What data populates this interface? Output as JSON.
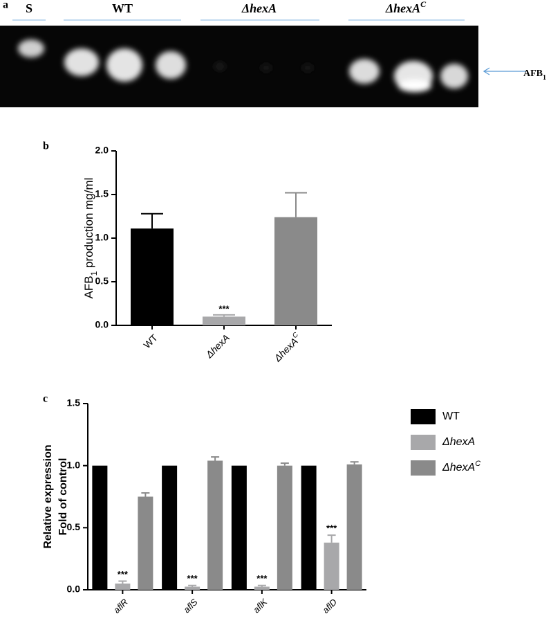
{
  "panel_a": {
    "label": "a",
    "lanes": [
      {
        "text": "S"
      },
      {
        "text": "WT"
      },
      {
        "text": "ΔhexA"
      },
      {
        "text": "ΔhexA",
        "sup": "C"
      }
    ],
    "marker": {
      "text": "AFB",
      "sub": "1"
    }
  },
  "chart_data": [
    {
      "type": "bar",
      "panel": "b",
      "ylabel": {
        "text": "AFB",
        "sub": "1",
        "rest": " production mg/ml"
      },
      "categories": [
        "WT",
        "ΔhexA",
        "ΔhexA"
      ],
      "category_sups": [
        null,
        null,
        "C"
      ],
      "values": [
        1.11,
        0.1,
        1.24
      ],
      "errors": [
        0.17,
        0.02,
        0.28
      ],
      "colors": [
        "#000000",
        "#a8a8aa",
        "#8a8a8a"
      ],
      "annotations": [
        null,
        "***",
        null
      ],
      "ylim": [
        0,
        2
      ],
      "yticks": [
        {
          "value": 0,
          "label": "0.0"
        },
        {
          "value": 0.5,
          "label": "0.5"
        },
        {
          "value": 1,
          "label": "1.0"
        },
        {
          "value": 1.5,
          "label": "1.5"
        },
        {
          "value": 2,
          "label": "2.0"
        }
      ]
    },
    {
      "type": "grouped_bar",
      "panel": "c",
      "ylabel": [
        "Relative expression",
        "Fold of control"
      ],
      "categories": [
        "aflR",
        "aflS",
        "aflK",
        "aflD"
      ],
      "series": [
        {
          "name": "WT",
          "color": "#000000",
          "values": [
            1,
            1,
            1,
            1
          ]
        },
        {
          "name": "ΔhexA",
          "color": "#a8a8aa",
          "values": [
            0.05,
            0.025,
            0.025,
            0.38
          ],
          "errors": [
            0.02,
            0.01,
            0.01,
            0.06
          ],
          "annotations": [
            "***",
            "***",
            "***",
            "***"
          ]
        },
        {
          "name": "ΔhexA",
          "name_sup": "C",
          "color": "#8a8a8a",
          "values": [
            0.75,
            1.04,
            1.0,
            1.01
          ],
          "errors": [
            0.03,
            0.03,
            0.02,
            0.02
          ]
        }
      ],
      "ylim": [
        0,
        1.5
      ],
      "yticks": [
        {
          "value": 0,
          "label": "0.0"
        },
        {
          "value": 0.5,
          "label": "0.5"
        },
        {
          "value": 1,
          "label": "1.0"
        },
        {
          "value": 1.5,
          "label": "1.5"
        }
      ],
      "legend": "right"
    }
  ]
}
